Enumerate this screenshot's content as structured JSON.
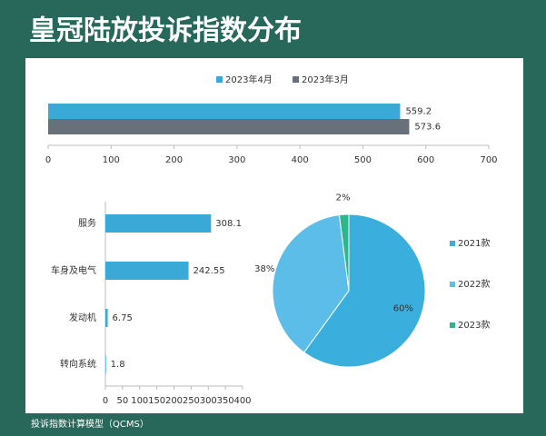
{
  "title": "皇冠陆放投诉指数分布",
  "footer": "投诉指数计算模型（QCMS）",
  "chart_data": [
    {
      "type": "bar",
      "orientation": "horizontal",
      "series": [
        {
          "name": "2023年4月",
          "color": "#3aa9d8",
          "values": [
            559.2
          ]
        },
        {
          "name": "2023年3月",
          "color": "#68717a",
          "values": [
            573.6
          ]
        }
      ],
      "xlim": [
        0,
        700
      ],
      "xticks": [
        0,
        100,
        200,
        300,
        400,
        500,
        600,
        700
      ],
      "legend": "top"
    },
    {
      "type": "bar",
      "orientation": "horizontal",
      "categories": [
        "服务",
        "车身及电气",
        "发动机",
        "转向系统"
      ],
      "values": [
        308.1,
        242.55,
        6.75,
        1.8
      ],
      "color": "#3aa9d8",
      "xlim": [
        0,
        400
      ],
      "xticks": [
        0,
        50,
        100,
        150,
        200,
        250,
        300,
        350,
        400
      ]
    },
    {
      "type": "pie",
      "categories": [
        "2021款",
        "2022款",
        "2023款"
      ],
      "values": [
        60,
        38,
        2
      ],
      "value_labels": [
        "60%",
        "38%",
        "2%"
      ],
      "colors": [
        "#3aaedc",
        "#5bbde8",
        "#2db58c"
      ],
      "legend": "right"
    }
  ]
}
